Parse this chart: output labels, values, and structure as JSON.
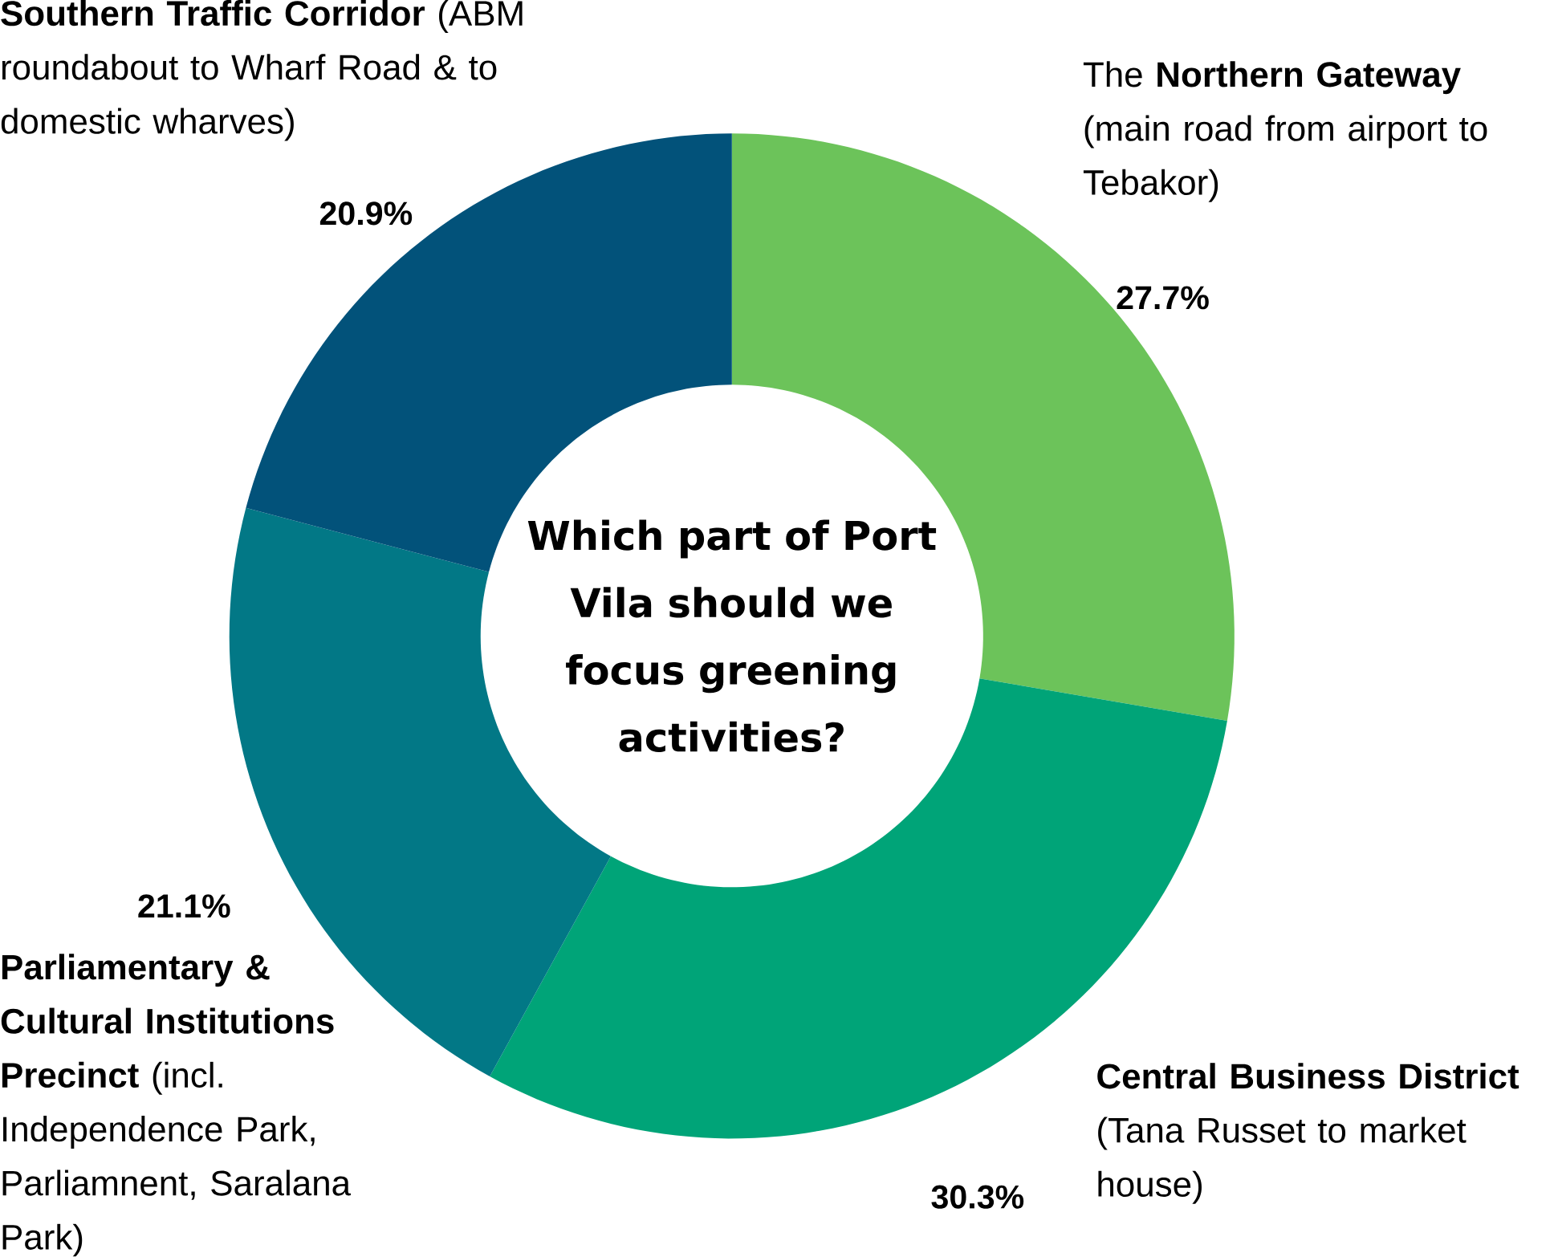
{
  "chart_data": {
    "type": "donut",
    "title": "Which part of Port Vila should we focus greening activities?",
    "categories": [
      "The **Northern Gateway** (main road from airport to Tebakor)",
      "**Central Business District** (Tana Russet to market house)",
      "**Parliamentary & Cultural Institutions Precinct** (incl. Independence Park, Parliamnent, Saralana Park)",
      "**Southern Traffic Corridor** (ABM roundabout to Wharf Road & to domestic wharves)"
    ],
    "values": [
      27.7,
      30.3,
      21.1,
      20.9
    ],
    "value_labels": [
      "27.7%",
      "30.3%",
      "21.1%",
      "20.9%"
    ],
    "colors": [
      "#6cc35a",
      "#00a478",
      "#027886",
      "#02527a"
    ]
  }
}
